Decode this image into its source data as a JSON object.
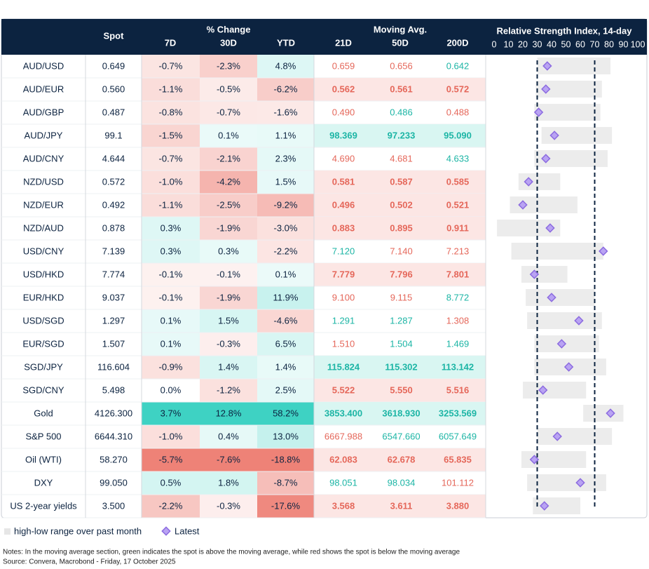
{
  "header": {
    "spot": "Spot",
    "pct_change": "% Change",
    "d7": "7D",
    "d30": "30D",
    "ytd": "YTD",
    "moving_avg": "Moving Avg.",
    "ma21": "21D",
    "ma50": "50D",
    "ma200": "200D"
  },
  "rows": [
    [
      "AUD/USD",
      "0.649",
      "-0.7%",
      "-2.3%",
      "4.8%",
      "0.659",
      "0.656",
      "0.642"
    ],
    [
      "AUD/EUR",
      "0.560",
      "-1.1%",
      "-0.5%",
      "-6.2%",
      "0.562",
      "0.561",
      "0.572"
    ],
    [
      "AUD/GBP",
      "0.487",
      "-0.8%",
      "-0.7%",
      "-1.6%",
      "0.490",
      "0.486",
      "0.488"
    ],
    [
      "AUD/JPY",
      "99.1",
      "-1.5%",
      "0.1%",
      "1.1%",
      "98.369",
      "97.233",
      "95.090"
    ],
    [
      "AUD/CNY",
      "4.644",
      "-0.7%",
      "-2.1%",
      "2.3%",
      "4.690",
      "4.681",
      "4.633"
    ],
    [
      "NZD/USD",
      "0.572",
      "-1.0%",
      "-4.2%",
      "1.5%",
      "0.581",
      "0.587",
      "0.585"
    ],
    [
      "NZD/EUR",
      "0.492",
      "-1.1%",
      "-2.5%",
      "-9.2%",
      "0.496",
      "0.502",
      "0.521"
    ],
    [
      "NZD/AUD",
      "0.878",
      "0.3%",
      "-1.9%",
      "-3.0%",
      "0.883",
      "0.895",
      "0.911"
    ],
    [
      "USD/CNY",
      "7.139",
      "0.3%",
      "0.3%",
      "-2.2%",
      "7.120",
      "7.140",
      "7.213"
    ],
    [
      "USD/HKD",
      "7.774",
      "-0.1%",
      "-0.1%",
      "0.1%",
      "7.779",
      "7.796",
      "7.801"
    ],
    [
      "EUR/HKD",
      "9.037",
      "-0.1%",
      "-1.9%",
      "11.9%",
      "9.100",
      "9.115",
      "8.772"
    ],
    [
      "USD/SGD",
      "1.297",
      "0.1%",
      "1.5%",
      "-4.6%",
      "1.291",
      "1.287",
      "1.308"
    ],
    [
      "EUR/SGD",
      "1.507",
      "0.1%",
      "-0.3%",
      "6.5%",
      "1.510",
      "1.504",
      "1.469"
    ],
    [
      "SGD/JPY",
      "116.604",
      "-0.9%",
      "1.4%",
      "1.4%",
      "115.824",
      "115.302",
      "113.142"
    ],
    [
      "SGD/CNY",
      "5.498",
      "0.0%",
      "-1.2%",
      "2.5%",
      "5.522",
      "5.550",
      "5.516"
    ],
    [
      "Gold",
      "4126.300",
      "3.7%",
      "12.8%",
      "58.2%",
      "3853.400",
      "3618.930",
      "3253.569"
    ],
    [
      "S&P 500",
      "6644.310",
      "-1.0%",
      "0.4%",
      "13.0%",
      "6667.988",
      "6547.660",
      "6057.649"
    ],
    [
      "Oil (WTI)",
      "58.270",
      "-5.7%",
      "-7.6%",
      "-18.8%",
      "62.083",
      "62.678",
      "65.835"
    ],
    [
      "DXY",
      "99.050",
      "0.5%",
      "1.8%",
      "-8.7%",
      "98.051",
      "98.034",
      "101.112"
    ],
    [
      "US 2-year yields",
      "3.500",
      "-2.2%",
      "-0.3%",
      "-17.6%",
      "3.568",
      "3.611",
      "3.880"
    ]
  ],
  "rsi": {
    "title": "Relative Strength Index, 14-day",
    "xlim": [
      0,
      100
    ],
    "xticks": [
      0,
      10,
      20,
      30,
      40,
      50,
      60,
      70,
      80,
      90,
      100
    ],
    "reference_lines": [
      30,
      70
    ],
    "rows": [
      {
        "low": 30,
        "high": 81,
        "latest": 37
      },
      {
        "low": 29,
        "high": 75,
        "latest": 36
      },
      {
        "low": 28,
        "high": 74,
        "latest": 31
      },
      {
        "low": 33,
        "high": 82,
        "latest": 42
      },
      {
        "low": 28,
        "high": 79,
        "latest": 36
      },
      {
        "low": 17,
        "high": 46,
        "latest": 24
      },
      {
        "low": 11,
        "high": 58,
        "latest": 20
      },
      {
        "low": 2,
        "high": 46,
        "latest": 39
      },
      {
        "low": 12,
        "high": 76,
        "latest": 76
      },
      {
        "low": 19,
        "high": 51,
        "latest": 28
      },
      {
        "low": 22,
        "high": 70,
        "latest": 40
      },
      {
        "low": 23,
        "high": 75,
        "latest": 59
      },
      {
        "low": 28,
        "high": 73,
        "latest": 47
      },
      {
        "low": 28,
        "high": 78,
        "latest": 52
      },
      {
        "low": 20,
        "high": 64,
        "latest": 34
      },
      {
        "low": 62,
        "high": 90,
        "latest": 81
      },
      {
        "low": 30,
        "high": 82,
        "latest": 44
      },
      {
        "low": 19,
        "high": 64,
        "latest": 28
      },
      {
        "low": 23,
        "high": 78,
        "latest": 60
      },
      {
        "low": 27,
        "high": 60,
        "latest": 35
      }
    ]
  },
  "legend": {
    "range": "high-low range over past month",
    "latest": "Latest"
  },
  "notes": "Notes: In the moving average section, green indicates the spot is above the moving average, while red shows the spot is below the moving average",
  "source": "Source: Convera, Macrobond - Friday, 17 October 2025"
}
